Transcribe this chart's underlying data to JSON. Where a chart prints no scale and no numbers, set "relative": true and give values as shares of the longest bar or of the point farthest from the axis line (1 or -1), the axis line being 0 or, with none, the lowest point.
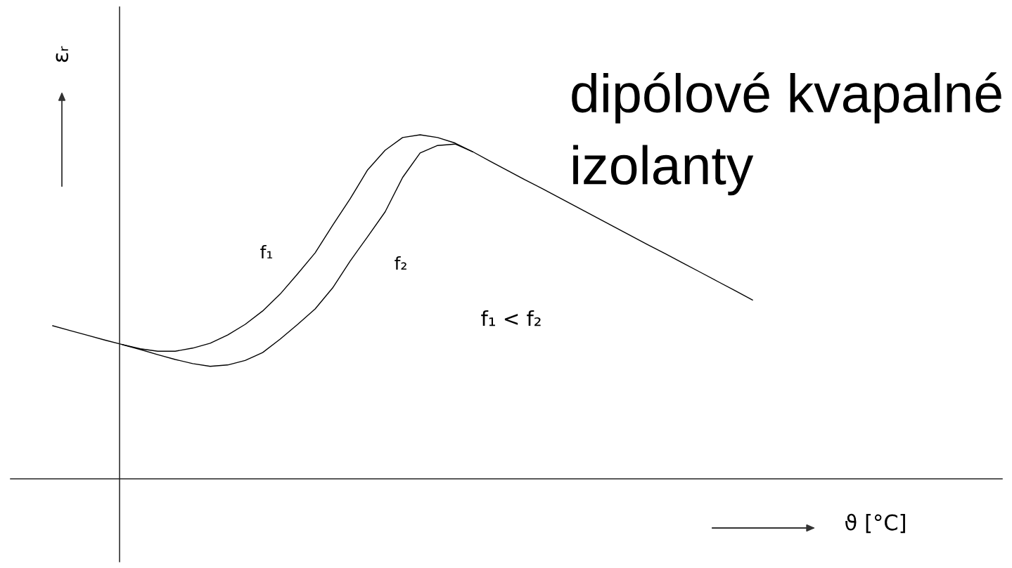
{
  "chart_data": {
    "type": "line",
    "relative": true,
    "title": "dipólové kvapalné izolanty",
    "xlabel": "ϑ [°C]",
    "ylabel": "εᵣ",
    "annotations": [
      "f₁ < f₂"
    ],
    "line_style": "solid",
    "categories": [
      null,
      null,
      null,
      null,
      null,
      null,
      null,
      null,
      null,
      null,
      null,
      null,
      null,
      null,
      null,
      null,
      null,
      null,
      null,
      null,
      null,
      null,
      null,
      null,
      null,
      null,
      null,
      null,
      null,
      null,
      null,
      null,
      null,
      null,
      null,
      null,
      null,
      null,
      null,
      null,
      null
    ],
    "series": [
      {
        "name": "f₁",
        "color": "#000000",
        "values": [
          0.445,
          0.431,
          0.417,
          0.403,
          0.39,
          0.378,
          0.371,
          0.371,
          0.38,
          0.394,
          0.418,
          0.449,
          0.488,
          0.537,
          0.596,
          0.657,
          0.737,
          0.814,
          0.898,
          0.955,
          0.992,
          1.0,
          0.992,
          0.976,
          0.951,
          0.923,
          0.896,
          0.869,
          0.843,
          0.816,
          0.789,
          0.762,
          0.735,
          0.708,
          0.681,
          0.655,
          0.628,
          0.601,
          0.574,
          0.547,
          0.52
        ]
      },
      {
        "name": "f₂",
        "color": "#000000",
        "values": [
          null,
          null,
          null,
          null,
          0.39,
          0.376,
          0.361,
          0.347,
          0.335,
          0.327,
          0.331,
          0.344,
          0.367,
          0.406,
          0.449,
          0.494,
          0.555,
          0.633,
          0.704,
          0.776,
          0.876,
          0.947,
          0.969,
          0.973,
          0.951,
          null,
          null,
          null,
          null,
          null,
          null,
          null,
          null,
          null,
          null,
          null,
          null,
          null,
          null,
          null,
          null
        ]
      }
    ]
  }
}
